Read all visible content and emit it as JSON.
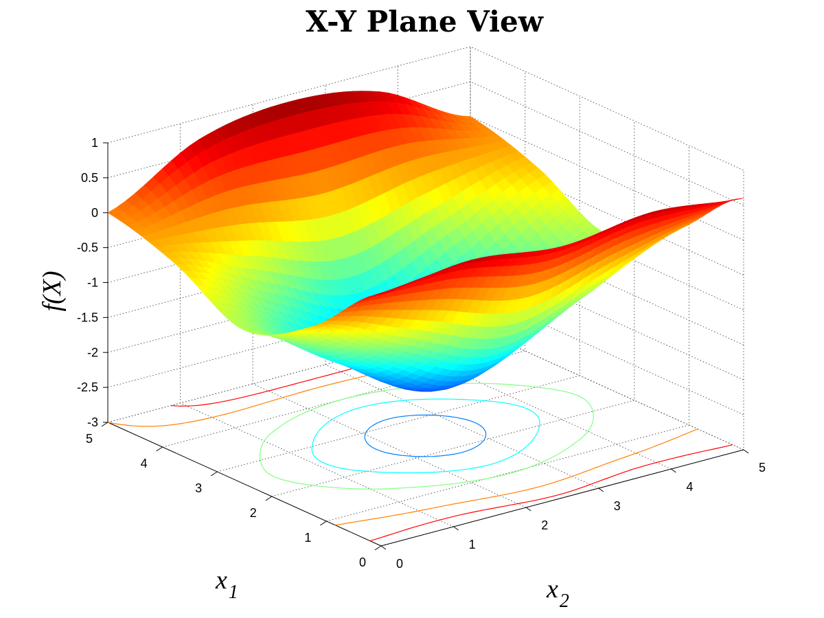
{
  "chart_data": {
    "type": "surface",
    "title": "X-Y Plane View",
    "xlabel": "x",
    "xlabel_sub": "1",
    "ylabel": "x",
    "ylabel_sub": "2",
    "zlabel": "f(X)",
    "x1_range": [
      0,
      5
    ],
    "x2_range": [
      0,
      5
    ],
    "z_range": [
      -3,
      1
    ],
    "x1_ticks": [
      "0",
      "1",
      "2",
      "3",
      "4",
      "5"
    ],
    "x2_ticks": [
      "0",
      "1",
      "2",
      "3",
      "4",
      "5"
    ],
    "z_ticks": [
      "1",
      "0.5",
      "0",
      "-0.5",
      "-1",
      "-1.5",
      "-2",
      "-2.5",
      "-3"
    ],
    "surface_samples": {
      "x1": [
        0,
        1.25,
        2.5,
        3.75,
        5
      ],
      "x2": [
        0,
        1.25,
        2.5,
        3.75,
        5
      ],
      "z": [
        [
          0.6,
          0.75,
          0.6,
          0.75,
          0.6
        ],
        [
          -0.3,
          -0.9,
          -1.4,
          -0.9,
          -0.3
        ],
        [
          -0.8,
          -1.6,
          -2.3,
          -1.6,
          -0.8
        ],
        [
          -0.3,
          -0.9,
          -1.4,
          -0.9,
          -0.3
        ],
        [
          0.0,
          0.7,
          0.9,
          0.7,
          0.0
        ]
      ]
    },
    "contour_levels": [
      -2.5,
      -2.0,
      -1.5,
      -1.0,
      0.0,
      0.5
    ],
    "colormap": "jet",
    "grid": true
  },
  "colors": {
    "background": "#ffffff",
    "axis": "#000000",
    "grid": "#555555"
  }
}
